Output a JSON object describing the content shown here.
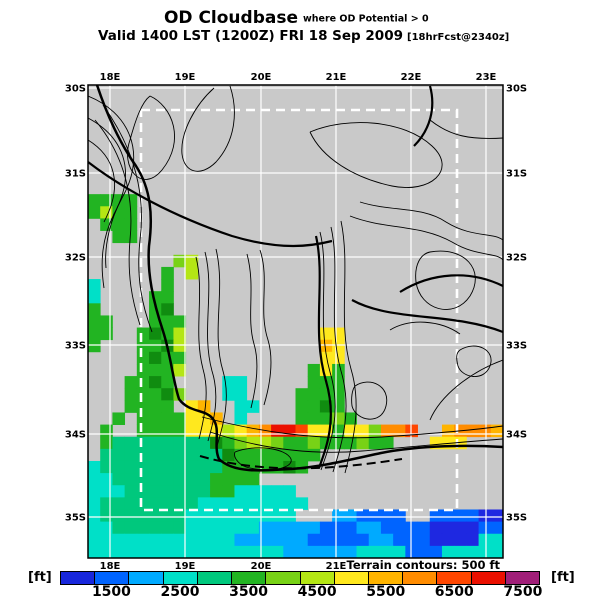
{
  "title": {
    "main": "OD Cloudbase",
    "qualifier": "where OD Potential > 0",
    "valid": "Valid 1400 LST (1200Z) FRI 18 Sep 2009",
    "fcst": "[18hrFcst@2340z]"
  },
  "map": {
    "background": "#c9c9c9",
    "grid_color": "#ffffff",
    "frame_color": "#000000",
    "top_axis_labels": [
      "18E",
      "19E",
      "20E",
      "21E",
      "22E",
      "23E"
    ],
    "bottom_axis_labels": [
      "18E",
      "19E",
      "20E",
      "21E"
    ],
    "left_axis_labels": [
      "30S",
      "31S",
      "32S",
      "33S",
      "34S",
      "35S"
    ],
    "right_axis_labels": [
      "30S",
      "31S",
      "32S",
      "33S",
      "34S",
      "35S"
    ],
    "note": "Terrain contours: 500 ft"
  },
  "colorbar": {
    "unit_left": "[ft]",
    "unit_right": "[ft]",
    "tick_labels": [
      "1500",
      "2500",
      "3500",
      "4500",
      "5500",
      "6500",
      "7500"
    ],
    "min_ft": 1000,
    "max_ft": 8000,
    "step_ft": 500,
    "colors": [
      "#1827dc",
      "#0064ff",
      "#00aaff",
      "#00e0c8",
      "#00c87d",
      "#22b422",
      "#78d216",
      "#b4e614",
      "#ffe81e",
      "#ffb400",
      "#ff8c00",
      "#ff4600",
      "#eb1000",
      "#a01e78"
    ]
  },
  "chart_data": {
    "type": "heatmap",
    "title": "OD Cloudbase where OD Potential > 0",
    "valid": "Valid 1400 LST (1200Z) FRI 18 Sep 2009 [18hrFcst@2340z]",
    "units": "ft",
    "x_axis": {
      "label": "longitude",
      "ticks": [
        "18E",
        "19E",
        "20E",
        "21E",
        "22E",
        "23E"
      ]
    },
    "y_axis": {
      "label": "latitude",
      "ticks": [
        "30S",
        "31S",
        "32S",
        "33S",
        "34S",
        "35S"
      ]
    },
    "legend": {
      "position": "bottom",
      "range_ft": [
        1000,
        8000
      ],
      "tick_labels_ft": [
        1500,
        2500,
        3500,
        4500,
        5500,
        6500,
        7500
      ]
    },
    "annotations": [
      "Terrain contours: 500 ft"
    ],
    "palette": {
      "B": {
        "color": "#1e28e1",
        "approx_ft": 1250
      },
      "b": {
        "color": "#0064ff",
        "approx_ft": 1750
      },
      "l": {
        "color": "#00aaff",
        "approx_ft": 2250
      },
      "c": {
        "color": "#00e0c8",
        "approx_ft": 2750
      },
      "s": {
        "color": "#00c87d",
        "approx_ft": 3250
      },
      "g": {
        "color": "#22b422",
        "approx_ft": 3750
      },
      "G": {
        "color": "#108c10",
        "approx_ft": 4000
      },
      "y": {
        "color": "#78d216",
        "approx_ft": 4250
      },
      "Y": {
        "color": "#b4e614",
        "approx_ft": 4750
      },
      "w": {
        "color": "#ffe81e",
        "approx_ft": 5250
      },
      "o": {
        "color": "#ffb400",
        "approx_ft": 5750
      },
      "O": {
        "color": "#ff8c00",
        "approx_ft": 6250
      },
      "r": {
        "color": "#ff4600",
        "approx_ft": 6750
      },
      "R": {
        "color": "#eb1000",
        "approx_ft": 7250
      }
    },
    "grid_rows": [
      "..................................",
      "..................................",
      "..................................",
      "..................................",
      "..................................",
      "..................................",
      "..................................",
      "..................................",
      "..................................",
      "gggg..............................",
      "gYgg..............................",
      ".ggg..............................",
      "..gg..............................",
      "..................................",
      ".......yY.........................",
      "......g.Y.........................",
      "c.....g...........................",
      "c....gg...........................",
      "g....gG...........................",
      "gg...ggg..........................",
      "gg..gGgY...........ww.............",
      "g...ggGY...........ow.............",
      "....gGgg...........ww.............",
      "....gggY..........gwg.............",
      "...ggGg....cc.....ggg.............",
      "...gggGy...cc....gggg.............",
      "...gggg.wo..cc...ggGg.............",
      "..g.ggggwwo.c....gggyg............",
      ".g..ggggwwwYwoORRrwwgwwyOOr..oOOOo",
      ".gssssssssGgyYYyggygggygg...www...",
      ".ssssssssssGggggggg...............",
      "cssssssssssgggggGg................",
      "ccssssssssgggg....................",
      "cccsssssssggccccc.................",
      "cssssssssccccccccc................",
      "csssssssccccccccc...llbbbb..bbbbBB",
      "ccsssssscccccclllllbbbllbbbbBBBBbb",
      "ccccccccccccllllllbbbbbllbbbBBBBcc",
      "ccccccccccccccccllllllccccbbbccccc"
    ]
  }
}
